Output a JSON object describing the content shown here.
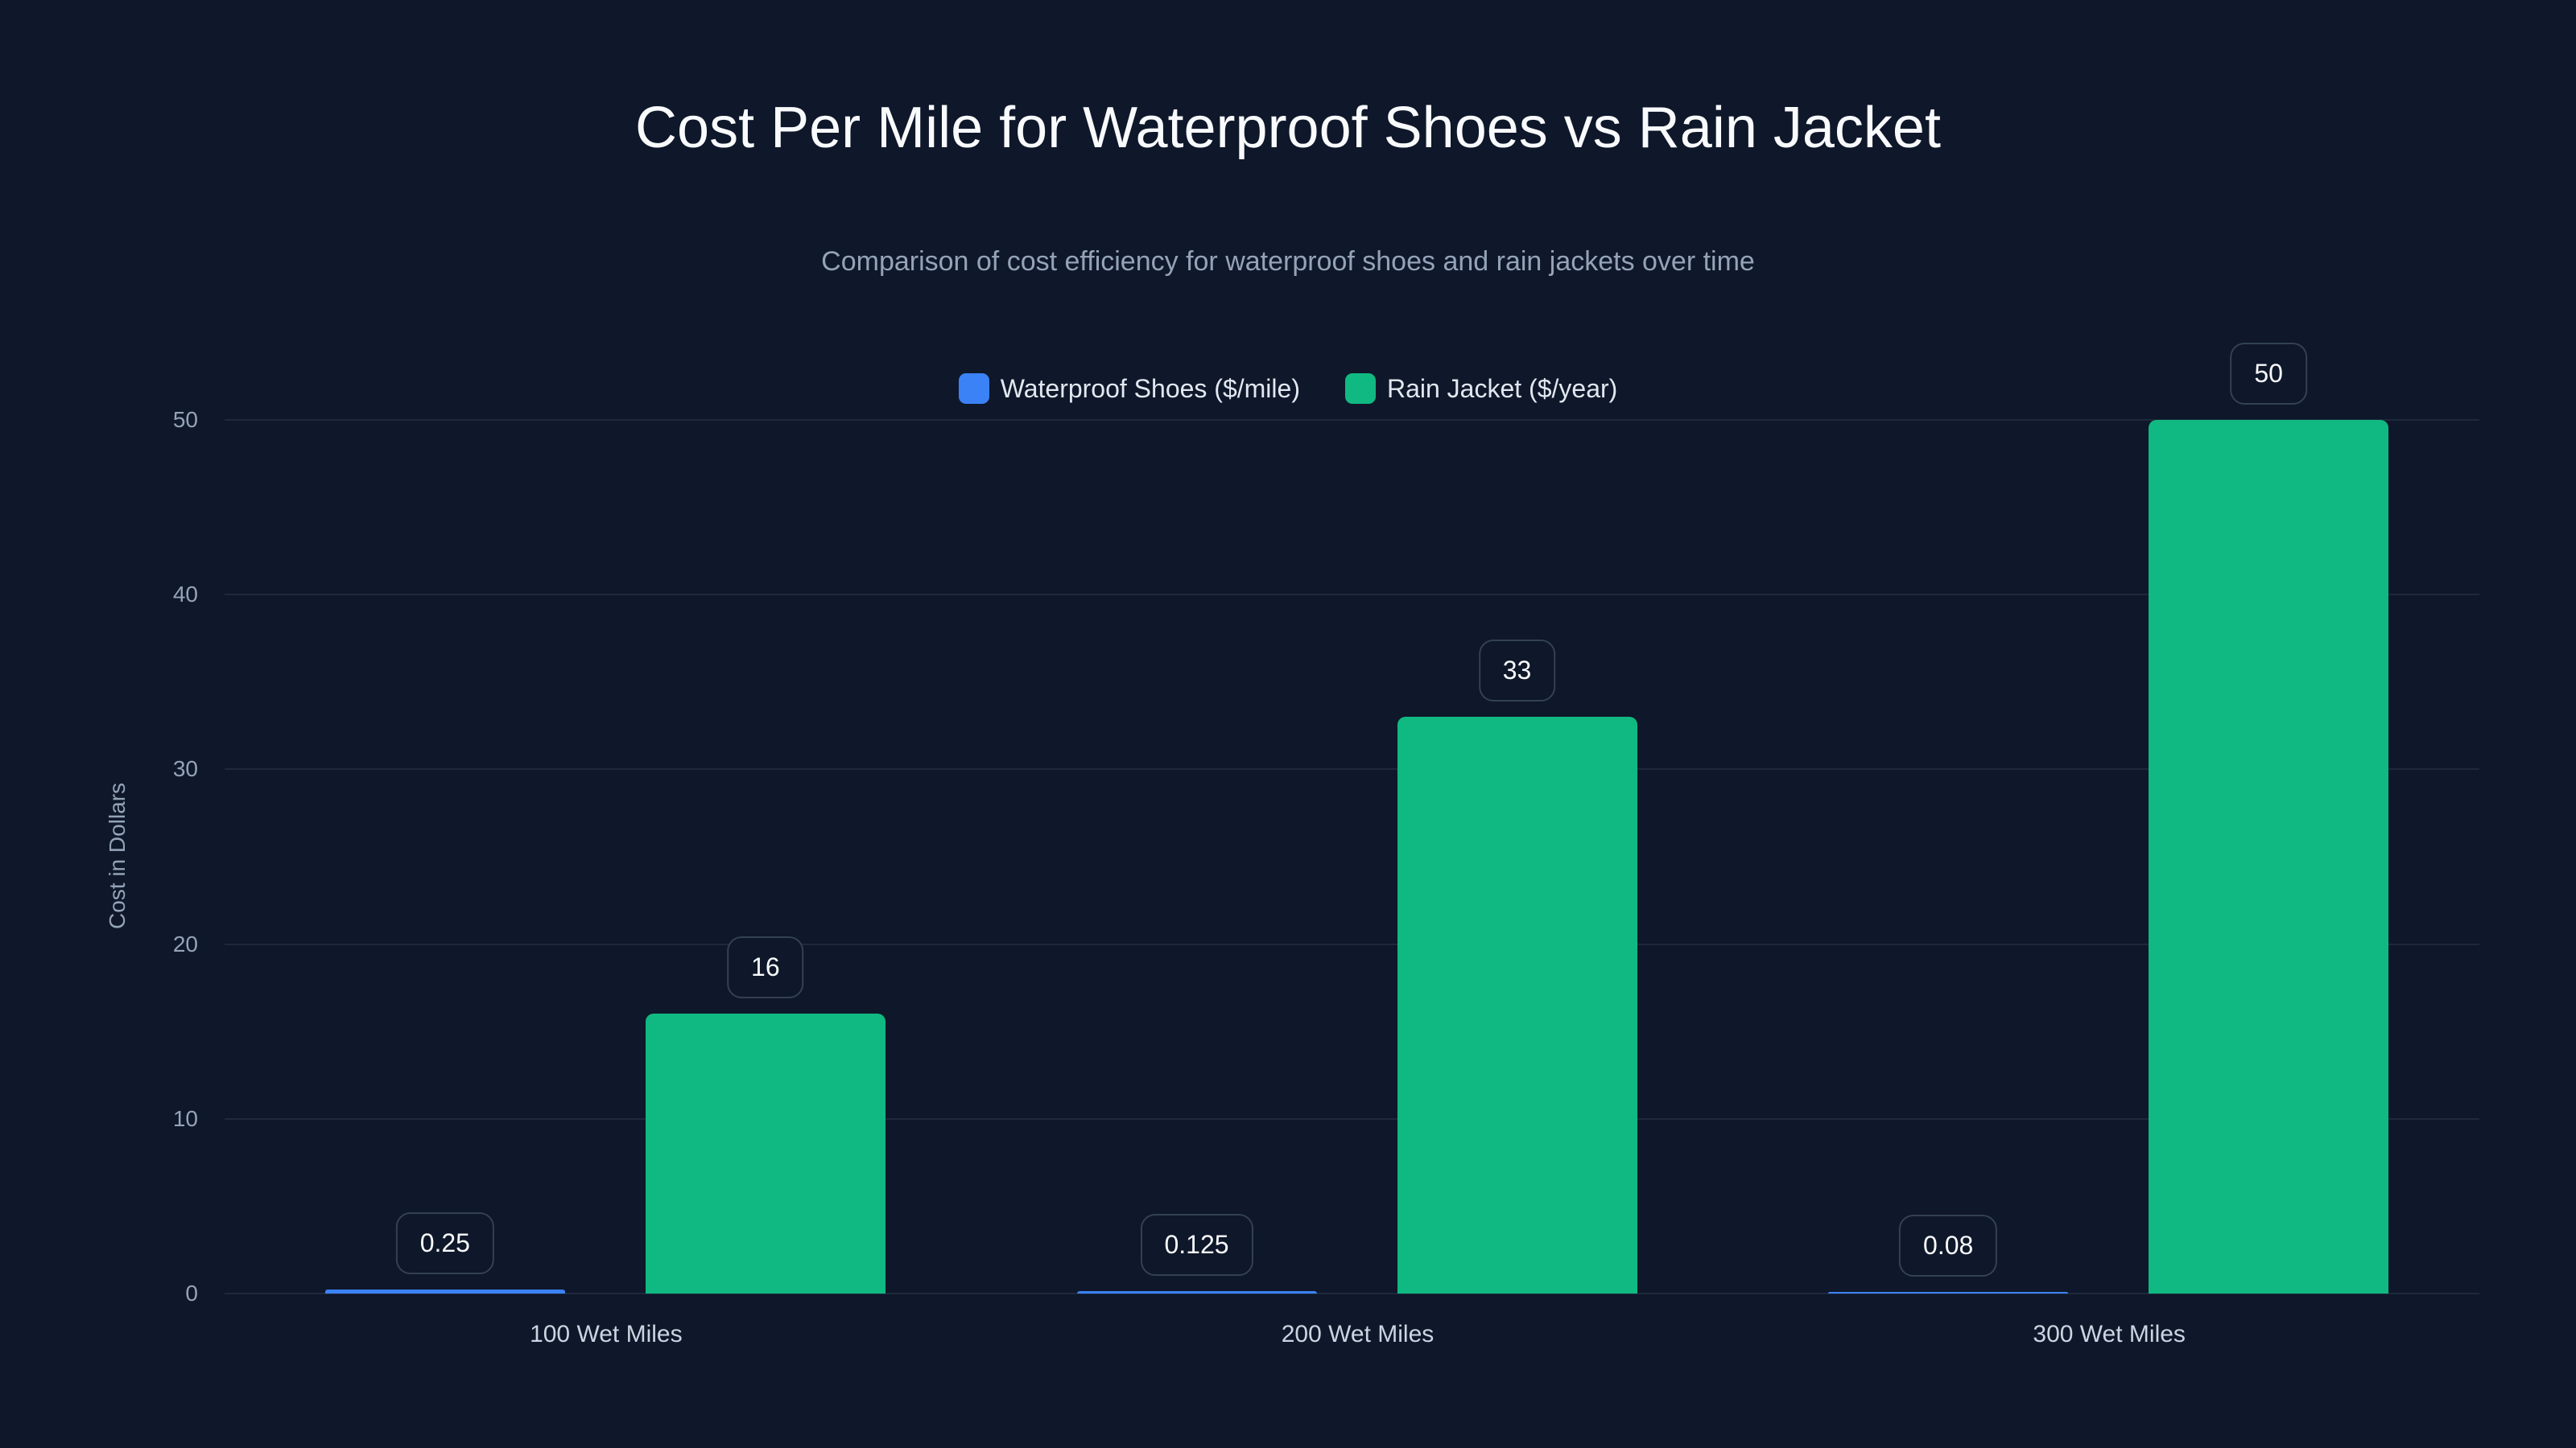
{
  "chart_data": {
    "type": "bar",
    "title": "Cost Per Mile for Waterproof Shoes vs Rain Jacket",
    "subtitle": "Comparison of cost efficiency for waterproof shoes and rain jackets over time",
    "xlabel": "",
    "ylabel": "Cost in Dollars",
    "ylim": [
      0,
      50
    ],
    "yticks": [
      "0",
      "10",
      "20",
      "30",
      "40",
      "50"
    ],
    "grid": true,
    "legend_position": "top",
    "categories": [
      "100 Wet Miles",
      "200 Wet Miles",
      "300 Wet Miles"
    ],
    "series": [
      {
        "name": "Waterproof Shoes ($/mile)",
        "color": "#3b82f6",
        "values": [
          0.25,
          0.125,
          0.08
        ],
        "labels": [
          "0.25",
          "0.125",
          "0.08"
        ]
      },
      {
        "name": "Rain Jacket ($/year)",
        "color": "#10b981",
        "values": [
          16,
          33,
          50
        ],
        "labels": [
          "16",
          "33",
          "50"
        ]
      }
    ]
  }
}
